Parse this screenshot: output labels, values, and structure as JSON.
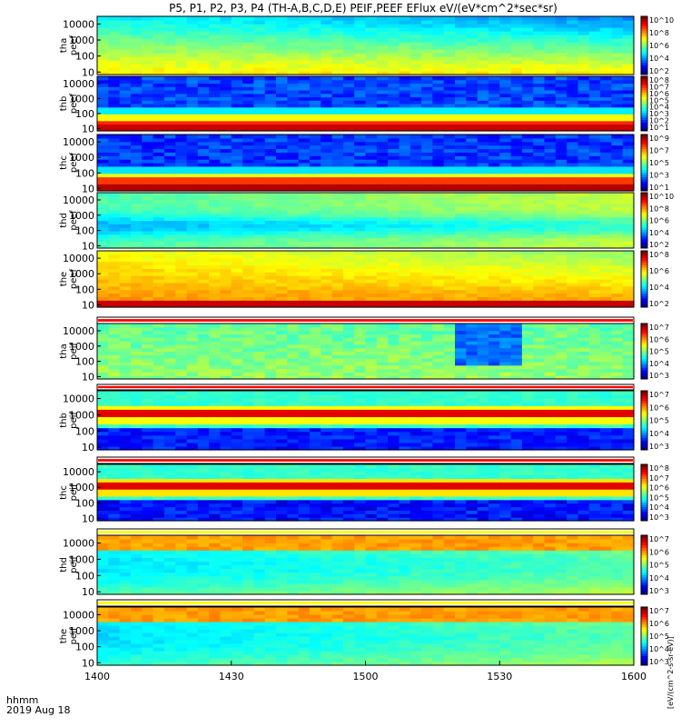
{
  "title": "P5, P1, P2, P3, P4 (TH-A,B,C,D,E) PEIF,PEEF EFlux eV/(eV*cm^2*sec*sr)",
  "time_axis": {
    "tick_labels": [
      "1400",
      "1430",
      "1500",
      "1530",
      "1600"
    ],
    "corner_label_1": "hhmm",
    "corner_label_2": "2019 Aug 18"
  },
  "colorbar_unit_label": "[eV/(cm^2-s-sr-eV)]",
  "chart_data": {
    "type": "heatmap",
    "x_units": "hhmm",
    "xlim": [
      "1400",
      "1600"
    ],
    "panels": [
      {
        "probe": "tha",
        "species": "peef",
        "label_line1": "tha",
        "label_line2": "peef",
        "y_tick_labels": [
          "10",
          "100",
          "1000",
          "10000"
        ],
        "ylim": [
          7,
          30000
        ],
        "y_scale": "log",
        "colorbar_tick_labels": [
          "10^2",
          "10^4",
          "10^6",
          "10^8",
          "10^10"
        ]
      },
      {
        "probe": "thb",
        "species": "peef",
        "label_line1": "thb",
        "label_line2": "peef",
        "y_tick_labels": [
          "10",
          "100",
          "1000",
          "10000"
        ],
        "ylim": [
          7,
          30000
        ],
        "y_scale": "log",
        "colorbar_tick_labels": [
          "10^1",
          "10^2",
          "10^3",
          "10^4",
          "10^5",
          "10^6",
          "10^7",
          "10^8"
        ]
      },
      {
        "probe": "thc",
        "species": "peef",
        "label_line1": "thc",
        "label_line2": "peef",
        "y_tick_labels": [
          "10",
          "100",
          "1000",
          "10000"
        ],
        "ylim": [
          7,
          30000
        ],
        "y_scale": "log",
        "colorbar_tick_labels": [
          "10^1",
          "10^3",
          "10^5",
          "10^7",
          "10^9"
        ]
      },
      {
        "probe": "thd",
        "species": "peef",
        "label_line1": "thd",
        "label_line2": "peef",
        "y_tick_labels": [
          "10",
          "100",
          "1000",
          "10000"
        ],
        "ylim": [
          7,
          30000
        ],
        "y_scale": "log",
        "colorbar_tick_labels": [
          "10^2",
          "10^4",
          "10^6",
          "10^8",
          "10^10"
        ]
      },
      {
        "probe": "the",
        "species": "peef",
        "label_line1": "the",
        "label_line2": "peef",
        "y_tick_labels": [
          "10",
          "100",
          "1000",
          "10000"
        ],
        "ylim": [
          7,
          30000
        ],
        "y_scale": "log",
        "colorbar_tick_labels": [
          "10^2",
          "10^4",
          "10^6",
          "10^8"
        ]
      },
      {
        "probe": "tha",
        "species": "peif",
        "label_line1": "tha",
        "label_line2": "peif",
        "y_tick_labels": [
          "10",
          "100",
          "1000",
          "10000"
        ],
        "ylim": [
          7,
          30000
        ],
        "y_scale": "log",
        "colorbar_tick_labels": [
          "10^3",
          "10^4",
          "10^5",
          "10^6",
          "10^7"
        ]
      },
      {
        "probe": "thb",
        "species": "peif",
        "label_line1": "thb",
        "label_line2": "peif",
        "y_tick_labels": [
          "10",
          "100",
          "1000",
          "10000"
        ],
        "ylim": [
          7,
          30000
        ],
        "y_scale": "log",
        "colorbar_tick_labels": [
          "10^3",
          "10^4",
          "10^5",
          "10^6",
          "10^7"
        ]
      },
      {
        "probe": "thc",
        "species": "peif",
        "label_line1": "thc",
        "label_line2": "peif",
        "y_tick_labels": [
          "10",
          "100",
          "1000",
          "10000"
        ],
        "ylim": [
          7,
          30000
        ],
        "y_scale": "log",
        "colorbar_tick_labels": [
          "10^3",
          "10^4",
          "10^5",
          "10^6",
          "10^7",
          "10^8"
        ]
      },
      {
        "probe": "thd",
        "species": "peif",
        "label_line1": "thd",
        "label_line2": "peif",
        "y_tick_labels": [
          "10",
          "100",
          "1000",
          "10000"
        ],
        "ylim": [
          7,
          30000
        ],
        "y_scale": "log",
        "colorbar_tick_labels": [
          "10^3",
          "10^4",
          "10^5",
          "10^6",
          "10^7"
        ]
      },
      {
        "probe": "the",
        "species": "peif",
        "label_line1": "the",
        "label_line2": "peif",
        "y_tick_labels": [
          "10",
          "100",
          "1000",
          "10000"
        ],
        "ylim": [
          7,
          30000
        ],
        "y_scale": "log",
        "colorbar_tick_labels": [
          "10^3",
          "10^4",
          "10^5",
          "10^6",
          "10^7"
        ]
      }
    ]
  }
}
